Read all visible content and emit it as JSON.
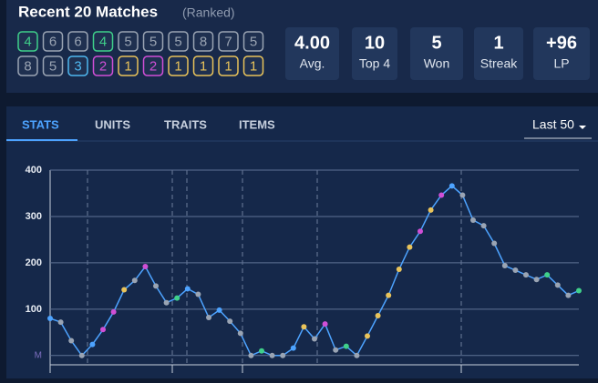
{
  "header": {
    "title": "Recent 20 Matches",
    "subtitle": "(Ranked)"
  },
  "placements": [
    4,
    6,
    6,
    4,
    5,
    5,
    5,
    8,
    7,
    5,
    8,
    5,
    3,
    2,
    1,
    2,
    1,
    1,
    1,
    1
  ],
  "placement_colors": {
    "1": "#e9c35a",
    "2": "#d04fd6",
    "3": "#4fb8f0",
    "4": "#3fd08a",
    "5": "#9aa4b3",
    "6": "#9aa4b3",
    "7": "#9aa4b3",
    "8": "#9aa4b3"
  },
  "stats": [
    {
      "value": "4.00",
      "label": "Avg."
    },
    {
      "value": "10",
      "label": "Top 4"
    },
    {
      "value": "5",
      "label": "Won"
    },
    {
      "value": "1",
      "label": "Streak"
    },
    {
      "value": "+96",
      "label": "LP"
    }
  ],
  "tabs": [
    "STATS",
    "UNITS",
    "TRAITS",
    "ITEMS"
  ],
  "dropdown": "Last 50",
  "chart": {
    "type": "line",
    "line_color": "#4da3ff",
    "values": [
      80,
      72,
      32,
      0,
      24,
      56,
      94,
      142,
      162,
      192,
      150,
      114,
      124,
      144,
      132,
      82,
      98,
      74,
      48,
      0,
      10,
      0,
      0,
      16,
      62,
      36,
      68,
      12,
      20,
      0,
      42,
      86,
      130,
      186,
      234,
      268,
      314,
      346,
      366,
      346,
      292,
      280,
      242,
      194,
      184,
      174,
      164,
      174,
      152,
      130,
      140
    ],
    "point_colors": [
      "#4da3ff",
      "#9aa4b3",
      "#9aa4b3",
      "#9aa4b3",
      "#4da3ff",
      "#d04fd6",
      "#d04fd6",
      "#e9c35a",
      "#9aa4b3",
      "#d04fd6",
      "#9aa4b3",
      "#9aa4b3",
      "#3fd08a",
      "#4da3ff",
      "#9aa4b3",
      "#9aa4b3",
      "#4da3ff",
      "#9aa4b3",
      "#9aa4b3",
      "#9aa4b3",
      "#3fd08a",
      "#9aa4b3",
      "#9aa4b3",
      "#4da3ff",
      "#e9c35a",
      "#9aa4b3",
      "#d04fd6",
      "#9aa4b3",
      "#3fd08a",
      "#9aa4b3",
      "#e9c35a",
      "#e9c35a",
      "#e9c35a",
      "#e9c35a",
      "#e9c35a",
      "#d04fd6",
      "#e9c35a",
      "#d04fd6",
      "#4da3ff",
      "#9aa4b3",
      "#9aa4b3",
      "#9aa4b3",
      "#9aa4b3",
      "#9aa4b3",
      "#9aa4b3",
      "#9aa4b3",
      "#9aa4b3",
      "#3fd08a",
      "#9aa4b3",
      "#9aa4b3",
      "#3fd08a"
    ],
    "ylim": [
      -20,
      400
    ],
    "yticks": [
      {
        "value": 0,
        "label": "M"
      },
      100,
      200,
      300,
      400
    ],
    "grid": true
  }
}
